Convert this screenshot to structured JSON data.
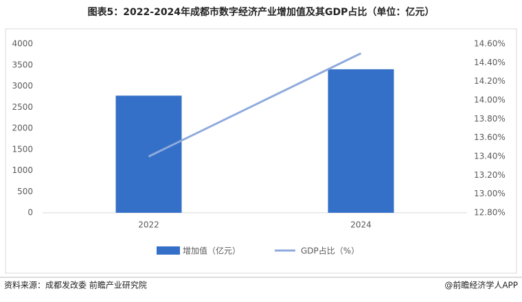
{
  "title": "图表5：2022-2024年成都市数字经济产业增加值及其GDP占比（单位：亿元）",
  "chart_data": {
    "type": "bar",
    "categories": [
      "2022",
      "2024"
    ],
    "series": [
      {
        "name": "增加值（亿元）",
        "type": "bar",
        "color": "#3470c8",
        "values": [
          2775,
          3400
        ]
      },
      {
        "name": "GDP占比（%）",
        "type": "line",
        "color": "#8eaadc",
        "axis": "y2",
        "values": [
          13.4,
          14.5
        ]
      }
    ],
    "ylim": [
      0,
      4000
    ],
    "yticks": [
      0,
      500,
      1000,
      1500,
      2000,
      2500,
      3000,
      3500,
      4000
    ],
    "y2lim": [
      12.8,
      14.6
    ],
    "y2ticks": [
      {
        "value": 12.8,
        "label": "12.80%"
      },
      {
        "value": 13.0,
        "label": "13.00%"
      },
      {
        "value": 13.2,
        "label": "13.20%"
      },
      {
        "value": 13.4,
        "label": "13.40%"
      },
      {
        "value": 13.6,
        "label": "13.60%"
      },
      {
        "value": 13.8,
        "label": "13.80%"
      },
      {
        "value": 14.0,
        "label": "14.00%"
      },
      {
        "value": 14.2,
        "label": "14.20%"
      },
      {
        "value": 14.4,
        "label": "14.40%"
      },
      {
        "value": 14.6,
        "label": "14.60%"
      }
    ],
    "grid": false
  },
  "footer": {
    "source": "资料来源：成都发改委  前瞻产业研究院",
    "brand": "@前瞻经济学人APP"
  }
}
